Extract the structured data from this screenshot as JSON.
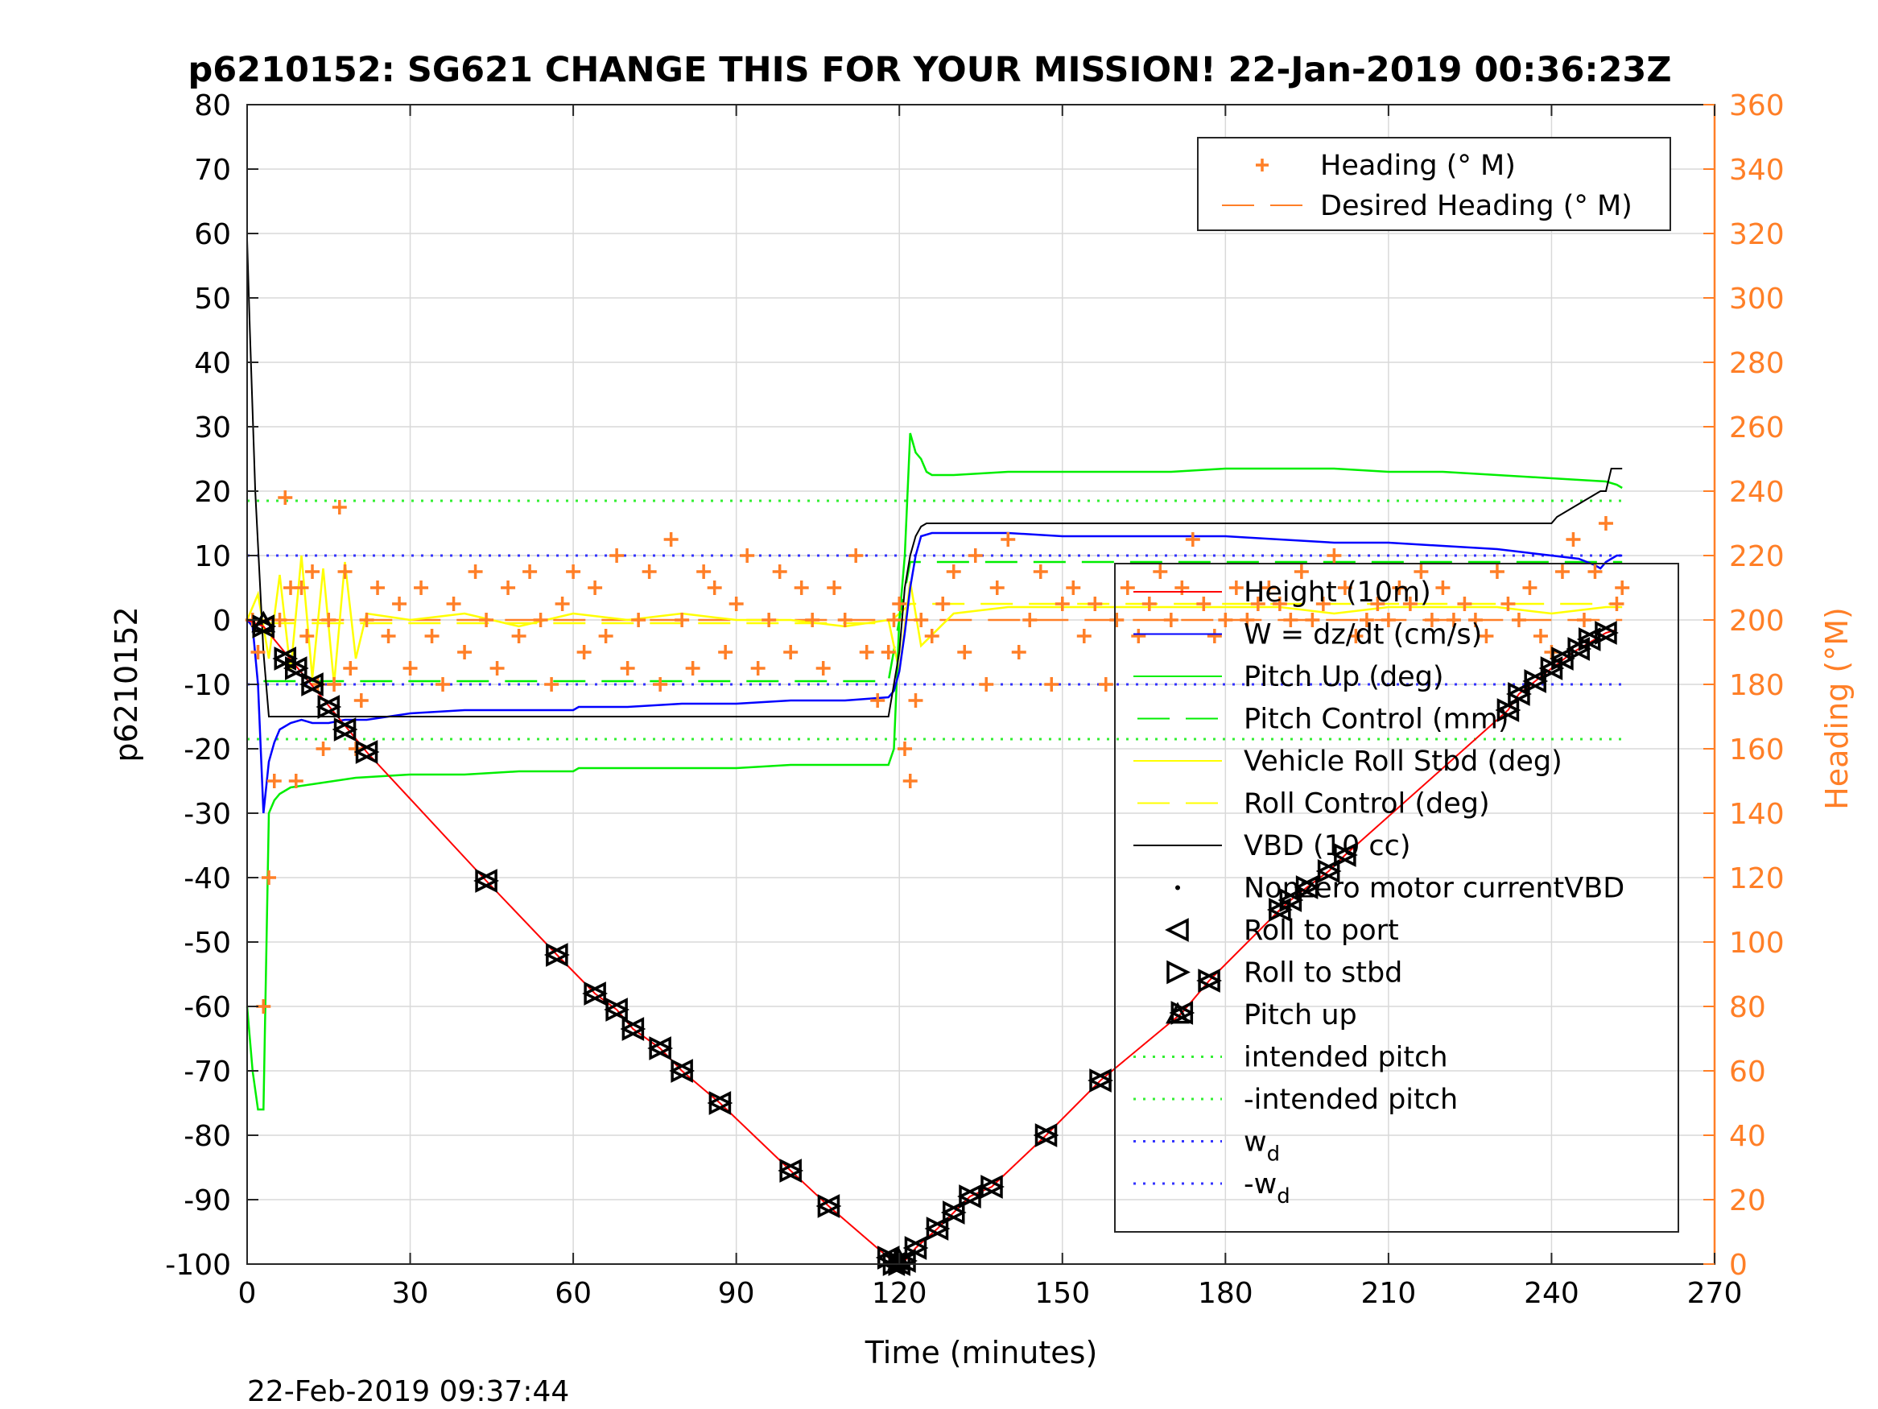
{
  "title": "p6210152: SG621 CHANGE THIS FOR YOUR MISSION! 22-Jan-2019 00:36:23Z",
  "timestamp": "22-Feb-2019 09:37:44",
  "colors": {
    "height": "#ff0000",
    "w": "#0000ff",
    "pitch": "#00ee00",
    "roll": "#ffff00",
    "vbd": "#000000",
    "heading": "#ff7f27",
    "intended": "#33ee33",
    "wd": "#3333ff"
  },
  "chart_data": {
    "type": "line",
    "xlabel": "Time (minutes)",
    "ylabel": "p6210152",
    "ylabel_right": "Heading (°M)",
    "xlim": [
      0,
      270
    ],
    "ylim": [
      -100,
      80
    ],
    "ylim_right": [
      0,
      360
    ],
    "xticks": [
      0,
      30,
      60,
      90,
      120,
      150,
      180,
      210,
      240,
      270
    ],
    "yticks": [
      -100,
      -90,
      -80,
      -70,
      -60,
      -50,
      -40,
      -30,
      -20,
      -10,
      0,
      10,
      20,
      30,
      40,
      50,
      60,
      70,
      80
    ],
    "yticks_right": [
      0,
      20,
      40,
      60,
      80,
      100,
      120,
      140,
      160,
      180,
      200,
      220,
      240,
      260,
      280,
      300,
      320,
      340,
      360
    ],
    "grid": true,
    "legend_right": [
      {
        "label": "Heading (° M)",
        "style": "plus"
      },
      {
        "label": "Desired Heading (° M)",
        "style": "dash"
      }
    ],
    "legend_left": [
      {
        "label": "Height (10m)",
        "style": "line"
      },
      {
        "label": "W = dz/dt (cm/s)",
        "style": "line"
      },
      {
        "label": "Pitch Up (deg)",
        "style": "line"
      },
      {
        "label": "Pitch Control (mm)",
        "style": "dash"
      },
      {
        "label": "Vehicle Roll Stbd (deg)",
        "style": "line"
      },
      {
        "label": "Roll Control (deg)",
        "style": "dash"
      },
      {
        "label": "VBD (10 cc)",
        "style": "line"
      },
      {
        "label": "Nonzero motor currentVBD",
        "style": "dot"
      },
      {
        "label": "Roll to port",
        "style": "tri-left"
      },
      {
        "label": "Roll to stbd",
        "style": "tri-right"
      },
      {
        "label": "Pitch up",
        "style": "tri-up"
      },
      {
        "label": "intended pitch",
        "style": "dotted"
      },
      {
        "label": "-intended pitch",
        "style": "dotted"
      },
      {
        "label": "w",
        "sub": "d",
        "style": "dotted"
      },
      {
        "label": "-w",
        "sub": "d",
        "style": "dotted"
      }
    ],
    "series": [
      {
        "name": "Height (10m)",
        "x": [
          0,
          3,
          22,
          44,
          57,
          64,
          68,
          71,
          76,
          80,
          87,
          100,
          107,
          118,
          119,
          121,
          123,
          127,
          130,
          133,
          137,
          147,
          157,
          172,
          177,
          190,
          192,
          195,
          199,
          202,
          232,
          234,
          237,
          240,
          244,
          247,
          250,
          252
        ],
        "y": [
          0,
          -1,
          -20.5,
          -40.5,
          -52,
          -58,
          -60.5,
          -63.5,
          -66.5,
          -70,
          -75,
          -85.5,
          -91,
          -99,
          -100,
          -99.5,
          -97.5,
          -94.5,
          -92,
          -89.5,
          -88,
          -80,
          -71.5,
          -61,
          -56,
          -45,
          -43.5,
          -41.5,
          -39,
          -36.5,
          -14,
          -11.5,
          -9.5,
          -7.5,
          -5,
          -3.5,
          -2,
          -1.5
        ]
      },
      {
        "name": "W = dz/dt (cm/s)",
        "x": [
          0,
          1,
          2,
          3,
          4,
          5,
          6,
          8,
          10,
          12,
          15,
          18,
          22,
          30,
          40,
          50,
          60,
          61,
          70,
          80,
          90,
          100,
          110,
          118,
          119,
          120,
          121,
          122,
          123,
          124,
          126,
          130,
          140,
          150,
          160,
          170,
          180,
          190,
          200,
          210,
          220,
          230,
          235,
          240,
          245,
          248,
          249,
          250,
          252,
          253
        ],
        "y": [
          0,
          -1,
          -10,
          -30,
          -22,
          -19,
          -17,
          -16,
          -15.5,
          -16,
          -16,
          -15.5,
          -15.5,
          -14.5,
          -14,
          -14,
          -14,
          -13.5,
          -13.5,
          -13,
          -13,
          -12.5,
          -12.5,
          -12,
          -11,
          -8,
          -2,
          5,
          10,
          13,
          13.5,
          13.5,
          13.5,
          13,
          13,
          13,
          13,
          12.5,
          12,
          12,
          11.5,
          11,
          10.5,
          10,
          9.5,
          8.5,
          8,
          9,
          10,
          10
        ]
      },
      {
        "name": "Pitch Up (deg)",
        "x": [
          0,
          1,
          2,
          3,
          4,
          5,
          6,
          8,
          12,
          20,
          30,
          40,
          50,
          60,
          61,
          70,
          80,
          90,
          100,
          110,
          118,
          119,
          120,
          121,
          122,
          123,
          124,
          125,
          126,
          130,
          140,
          150,
          160,
          170,
          180,
          190,
          200,
          210,
          220,
          230,
          240,
          250,
          252,
          253
        ],
        "y": [
          -60,
          -70,
          -76,
          -76,
          -30,
          -28,
          -27,
          -26,
          -25.5,
          -24.5,
          -24,
          -24,
          -23.5,
          -23.5,
          -23,
          -23,
          -23,
          -23,
          -22.5,
          -22.5,
          -22.5,
          -20,
          0,
          10,
          29,
          26,
          25,
          23,
          22.5,
          22.5,
          23,
          23,
          23,
          23,
          23.5,
          23.5,
          23.5,
          23,
          23,
          22.5,
          22,
          21.5,
          21,
          20.5
        ]
      },
      {
        "name": "Pitch Control (mm)",
        "x": [
          3,
          118,
          120,
          122,
          253
        ],
        "y": [
          -9.5,
          -9.5,
          0,
          9,
          9
        ]
      },
      {
        "name": "Vehicle Roll Stbd (deg)",
        "x": [
          0,
          2,
          4,
          6,
          8,
          10,
          12,
          14,
          16,
          18,
          20,
          22,
          30,
          40,
          50,
          60,
          70,
          80,
          90,
          100,
          110,
          118,
          120,
          122,
          124,
          130,
          140,
          150,
          160,
          170,
          180,
          190,
          200,
          210,
          220,
          230,
          240,
          250,
          253
        ],
        "y": [
          0,
          4,
          -6,
          7,
          -8,
          10,
          -9,
          8,
          -10,
          9,
          -6,
          1,
          0,
          1,
          -1,
          1,
          0,
          1,
          0,
          0,
          -1,
          0,
          -8,
          6,
          -4,
          1,
          2,
          2,
          2,
          2,
          2,
          2,
          1,
          2,
          2,
          2,
          1,
          2,
          2
        ]
      },
      {
        "name": "Roll Control (deg)",
        "x": [
          3,
          118,
          122,
          253
        ],
        "y": [
          -0.5,
          -0.5,
          2.5,
          2.5
        ]
      },
      {
        "name": "VBD (10 cc)",
        "x": [
          0,
          0.5,
          1.5,
          3,
          4,
          118,
          120,
          121,
          122,
          123,
          124,
          125,
          140,
          180,
          240,
          241,
          243,
          245,
          247,
          249,
          250,
          251,
          253
        ],
        "y": [
          59,
          45,
          20,
          -5,
          -15,
          -15,
          -5,
          5,
          10,
          13,
          14.5,
          15,
          15,
          15,
          15,
          16,
          17,
          18,
          19,
          20,
          20,
          23.5,
          23.5
        ]
      },
      {
        "name": "intended pitch",
        "x": [
          0,
          253
        ],
        "y": [
          18.5,
          18.5
        ]
      },
      {
        "name": "-intended pitch",
        "x": [
          0,
          253
        ],
        "y": [
          -18.5,
          -18.5
        ]
      },
      {
        "name": "w_d",
        "x": [
          0,
          253
        ],
        "y": [
          10,
          10
        ]
      },
      {
        "name": "-w_d",
        "x": [
          0,
          253
        ],
        "y": [
          -10,
          -10
        ]
      },
      {
        "name": "Heading (° M)",
        "axis": "right",
        "x": [
          1,
          2,
          3,
          4,
          5,
          6,
          7,
          8,
          9,
          10,
          11,
          12,
          13,
          14,
          15,
          16,
          17,
          18,
          19,
          20,
          21,
          22,
          24,
          26,
          28,
          30,
          32,
          34,
          36,
          38,
          40,
          42,
          44,
          46,
          48,
          50,
          52,
          54,
          56,
          58,
          60,
          62,
          64,
          66,
          68,
          70,
          72,
          74,
          76,
          78,
          80,
          82,
          84,
          86,
          88,
          90,
          92,
          94,
          96,
          98,
          100,
          102,
          104,
          106,
          108,
          110,
          112,
          114,
          116,
          118,
          119,
          120,
          121,
          122,
          123,
          124,
          126,
          128,
          130,
          132,
          134,
          136,
          138,
          140,
          142,
          144,
          146,
          148,
          150,
          152,
          154,
          156,
          158,
          160,
          162,
          164,
          166,
          168,
          170,
          172,
          174,
          176,
          178,
          180,
          182,
          184,
          186,
          188,
          190,
          192,
          194,
          196,
          198,
          200,
          202,
          204,
          206,
          208,
          210,
          212,
          214,
          216,
          218,
          220,
          222,
          224,
          226,
          228,
          230,
          232,
          234,
          236,
          238,
          240,
          242,
          244,
          246,
          248,
          250,
          252,
          253
        ],
        "y": [
          200,
          190,
          80,
          120,
          150,
          200,
          238,
          210,
          150,
          210,
          195,
          215,
          180,
          160,
          200,
          180,
          235,
          215,
          185,
          160,
          175,
          200,
          210,
          195,
          205,
          185,
          210,
          195,
          180,
          205,
          190,
          215,
          200,
          185,
          210,
          195,
          215,
          200,
          180,
          205,
          215,
          190,
          210,
          195,
          220,
          185,
          200,
          215,
          180,
          225,
          200,
          185,
          215,
          210,
          190,
          205,
          220,
          185,
          200,
          215,
          190,
          210,
          200,
          185,
          210,
          200,
          220,
          190,
          175,
          190,
          200,
          205,
          160,
          150,
          175,
          200,
          195,
          205,
          215,
          190,
          220,
          180,
          210,
          225,
          190,
          200,
          215,
          180,
          205,
          210,
          195,
          205,
          180,
          200,
          210,
          195,
          205,
          215,
          200,
          210,
          225,
          205,
          195,
          200,
          210,
          200,
          205,
          210,
          205,
          200,
          215,
          200,
          205,
          220,
          210,
          195,
          200,
          205,
          200,
          210,
          205,
          215,
          200,
          210,
          200,
          205,
          200,
          195,
          215,
          205,
          200,
          210,
          195,
          190,
          215,
          225,
          200,
          215,
          230,
          205,
          210
        ]
      },
      {
        "name": "Desired Heading (° M)",
        "axis": "right",
        "x": [
          3,
          253
        ],
        "y": [
          200,
          200
        ]
      },
      {
        "name": "Roll to port",
        "marker": "tri-left",
        "x": [
          3,
          7,
          9,
          12,
          15,
          18,
          22,
          44,
          57,
          64,
          68,
          71,
          76,
          80,
          87,
          100,
          107,
          118,
          119,
          120,
          121,
          123,
          127,
          130,
          133,
          137,
          147,
          157,
          172,
          177,
          190,
          192,
          195,
          199,
          202,
          232,
          234,
          237,
          240,
          242,
          245,
          247,
          250
        ],
        "y": [
          -1,
          -6,
          -7.5,
          -10,
          -13.5,
          -17,
          -20.5,
          -40.5,
          -52,
          -58,
          -60.5,
          -63.5,
          -66.5,
          -70,
          -75,
          -85.5,
          -91,
          -99,
          -100,
          -100,
          -99.5,
          -97.5,
          -94.5,
          -92,
          -89.5,
          -88,
          -80,
          -71.5,
          -61,
          -56,
          -45,
          -43.5,
          -41.5,
          -39,
          -36.5,
          -14,
          -11.5,
          -9.5,
          -7.5,
          -6,
          -4.5,
          -3,
          -2
        ]
      },
      {
        "name": "Roll to stbd",
        "marker": "tri-right",
        "x": [
          3,
          7,
          9,
          12,
          15,
          18,
          22,
          44,
          57,
          64,
          68,
          71,
          76,
          80,
          87,
          100,
          107,
          118,
          119,
          120,
          121,
          123,
          127,
          130,
          133,
          137,
          147,
          157,
          172,
          177,
          190,
          192,
          195,
          199,
          202,
          232,
          234,
          237,
          240,
          242,
          245,
          247,
          250
        ],
        "y": [
          -1,
          -6,
          -7.5,
          -10,
          -13.5,
          -17,
          -20.5,
          -40.5,
          -52,
          -58,
          -60.5,
          -63.5,
          -66.5,
          -70,
          -75,
          -85.5,
          -91,
          -99,
          -100,
          -100,
          -99.5,
          -97.5,
          -94.5,
          -92,
          -89.5,
          -88,
          -80,
          -71.5,
          -61,
          -56,
          -45,
          -43.5,
          -41.5,
          -39,
          -36.5,
          -14,
          -11.5,
          -9.5,
          -7.5,
          -6,
          -4.5,
          -3,
          -2
        ]
      },
      {
        "name": "Pitch up",
        "marker": "tri-up",
        "x": [
          3,
          120
        ],
        "y": [
          -0.5,
          -99.5
        ]
      }
    ]
  }
}
